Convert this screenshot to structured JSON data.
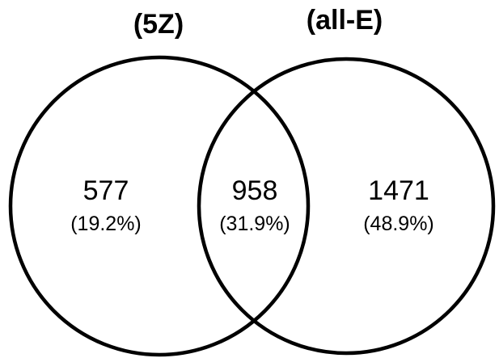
{
  "sets": {
    "left": {
      "title": "(5Z)"
    },
    "right": {
      "title": "(all-E)"
    }
  },
  "regions": {
    "left_only": {
      "count": "577",
      "percent": "(19.2%)"
    },
    "overlap": {
      "count": "958",
      "percent": "(31.9%)"
    },
    "right_only": {
      "count": "1471",
      "percent": "(48.9%)"
    }
  },
  "colors": {
    "stroke": "#000000",
    "background": "#ffffff"
  }
}
